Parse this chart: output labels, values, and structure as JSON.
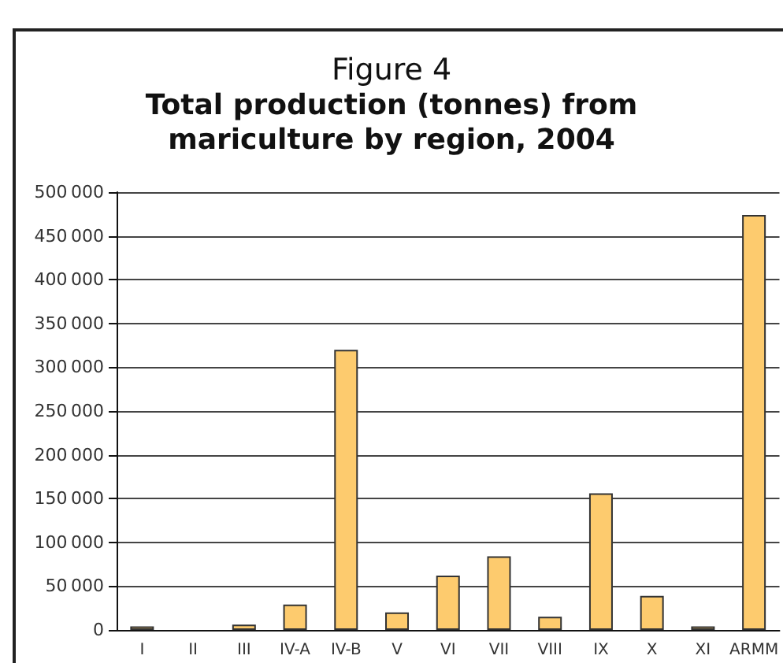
{
  "chart_data": {
    "type": "bar",
    "title": "Figure 4",
    "subtitle": "Total production (tonnes) from\nmariculture by region, 2004",
    "categories": [
      "I",
      "II",
      "III",
      "IV-A",
      "IV-B",
      "V",
      "VI",
      "VII",
      "VIII",
      "IX",
      "X",
      "XI",
      "ARMM"
    ],
    "values": [
      4000,
      null,
      6000,
      29000,
      320000,
      20000,
      62000,
      84000,
      15000,
      156000,
      39000,
      4000,
      474000
    ],
    "color": "#fdcb6e",
    "ylim": [
      0,
      500000
    ],
    "yticks": [
      0,
      50000,
      100000,
      150000,
      200000,
      250000,
      300000,
      350000,
      400000,
      450000,
      500000
    ],
    "grid": true
  }
}
